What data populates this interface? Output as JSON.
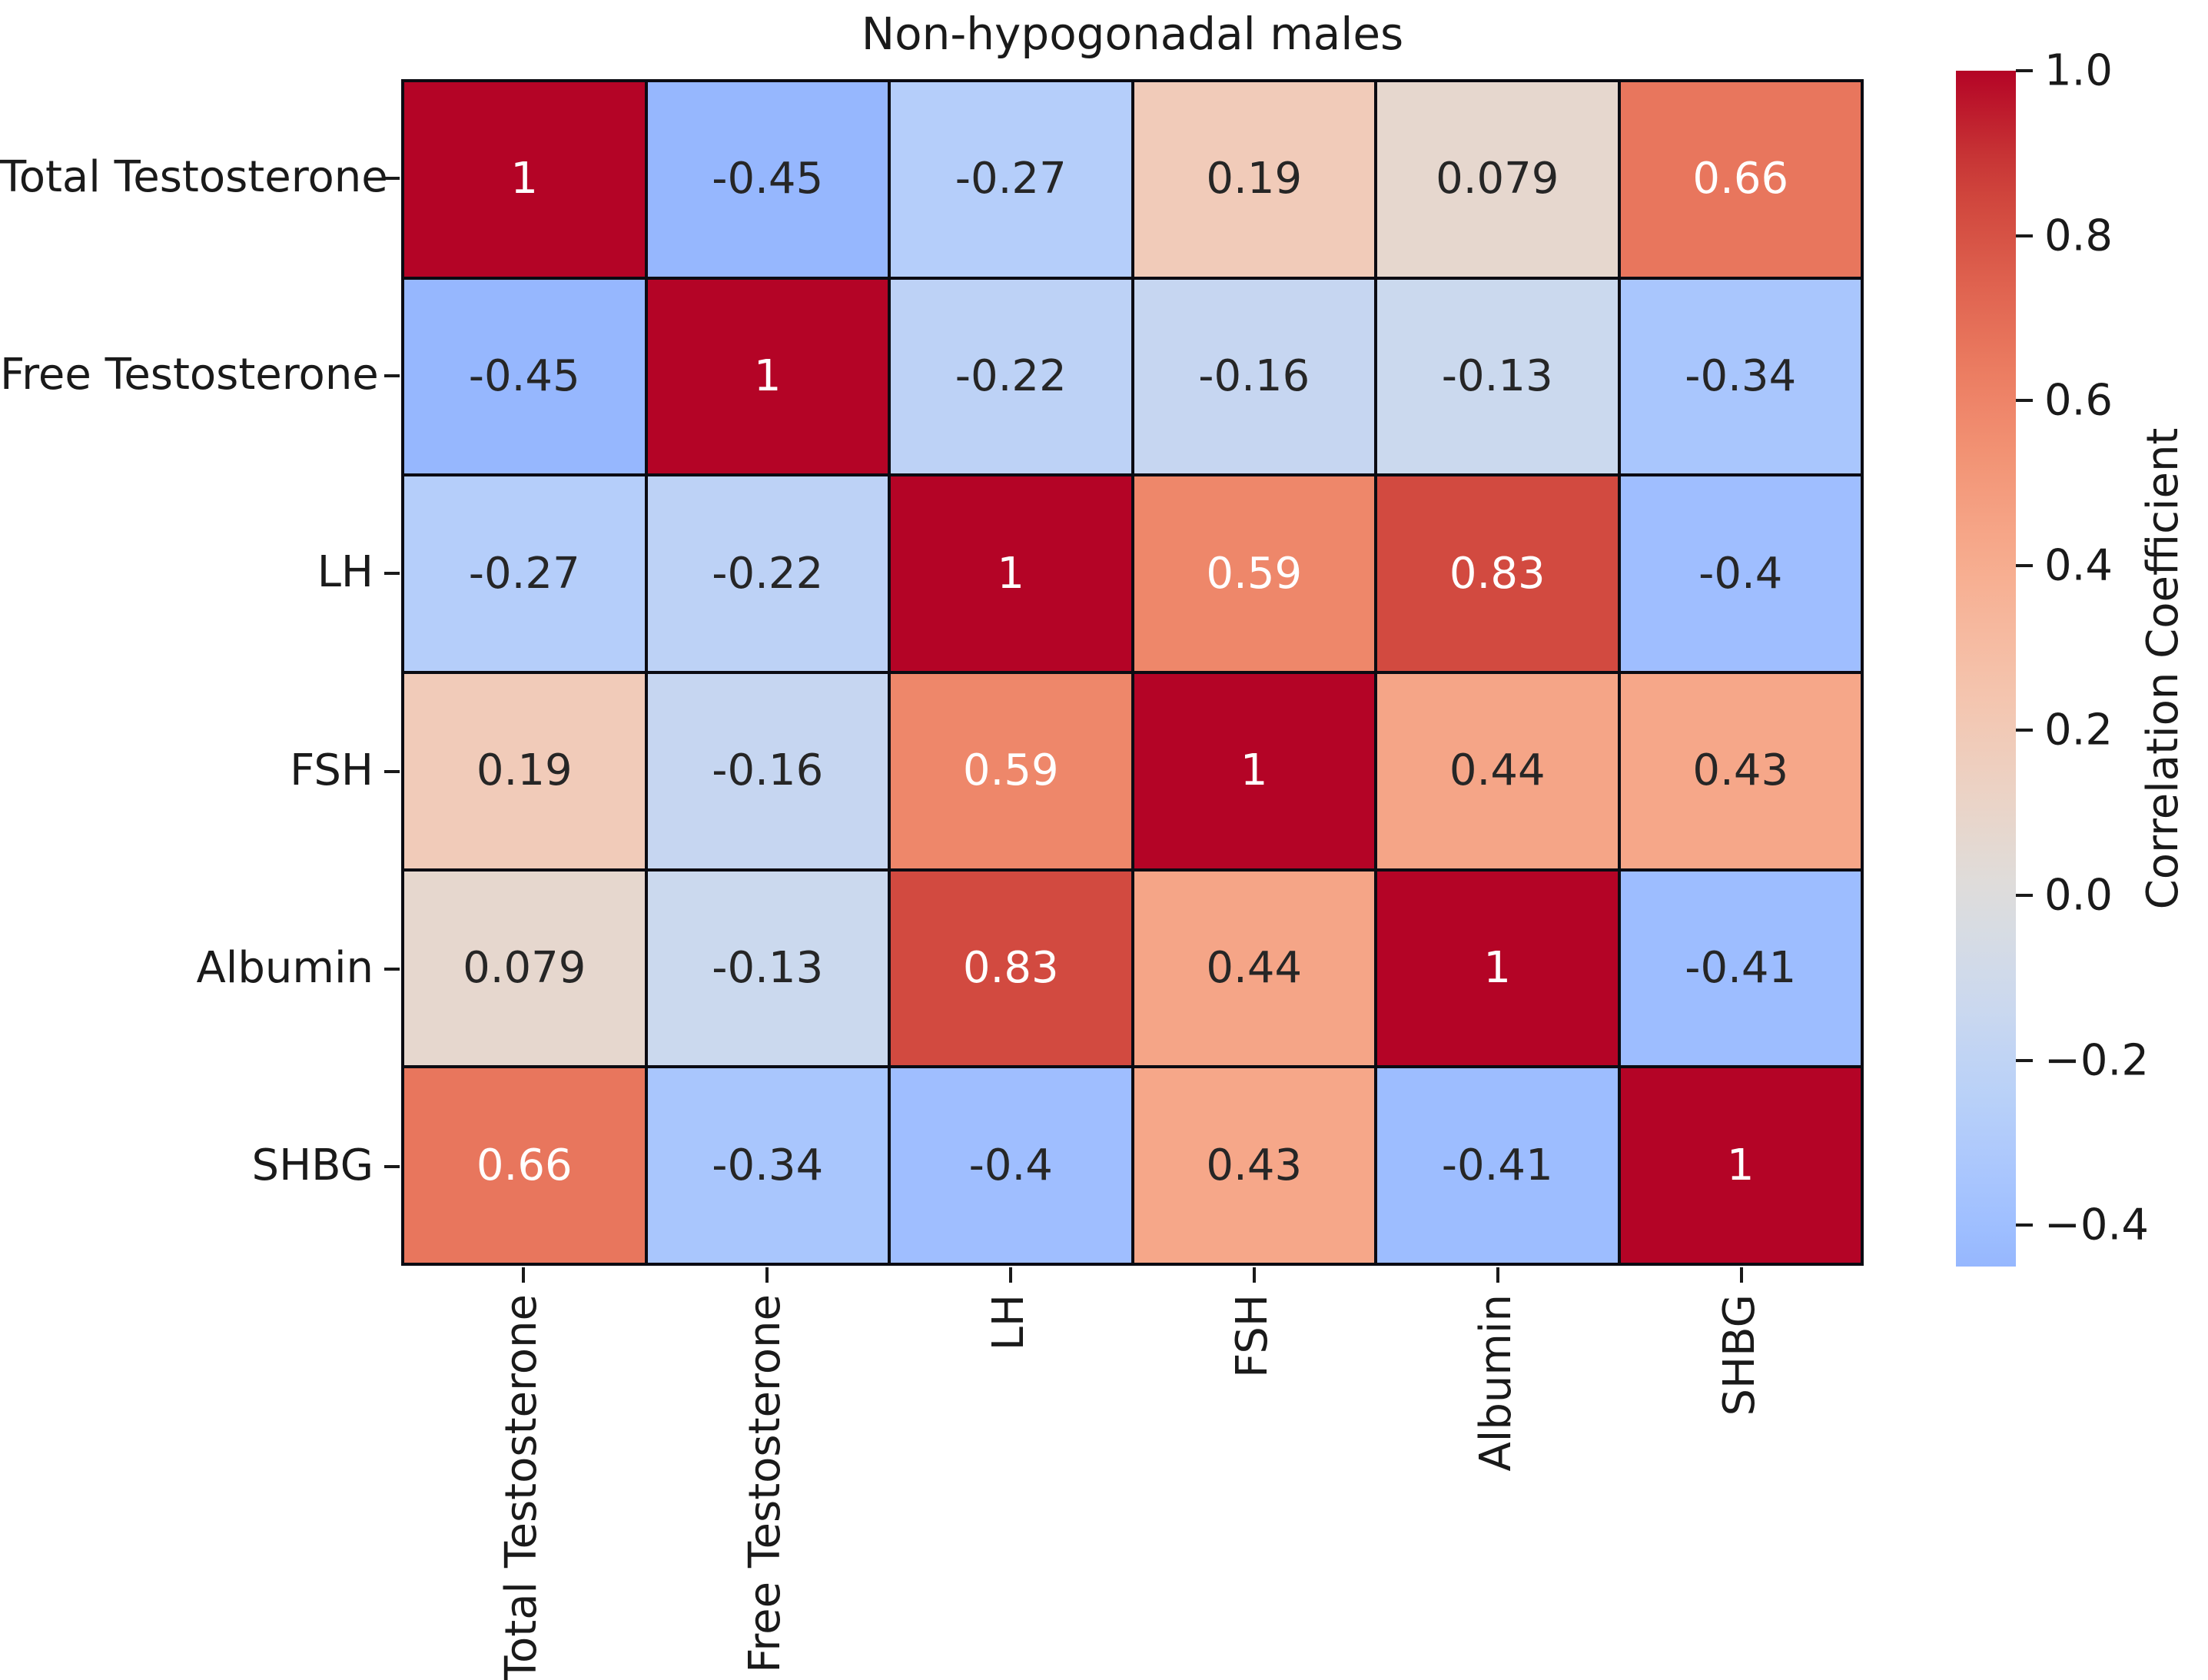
{
  "title": "Non-hypogonadal males",
  "chart_data": {
    "type": "heatmap",
    "title": "Non-hypogonadal males",
    "categories": [
      "Total Testosterone",
      "Free Testosterone",
      "LH",
      "FSH",
      "Albumin",
      "SHBG"
    ],
    "matrix": [
      [
        1,
        -0.45,
        -0.27,
        0.19,
        0.079,
        0.66
      ],
      [
        -0.45,
        1,
        -0.22,
        -0.16,
        -0.13,
        -0.34
      ],
      [
        -0.27,
        -0.22,
        1,
        0.59,
        0.83,
        -0.4
      ],
      [
        0.19,
        -0.16,
        0.59,
        1,
        0.44,
        0.43
      ],
      [
        0.079,
        -0.13,
        0.83,
        0.44,
        1,
        -0.41
      ],
      [
        0.66,
        -0.34,
        -0.4,
        0.43,
        -0.41,
        1
      ]
    ],
    "cell_labels": [
      [
        "1",
        "-0.45",
        "-0.27",
        "0.19",
        "0.079",
        "0.66"
      ],
      [
        "-0.45",
        "1",
        "-0.22",
        "-0.16",
        "-0.13",
        "-0.34"
      ],
      [
        "-0.27",
        "-0.22",
        "1",
        "0.59",
        "0.83",
        "-0.4"
      ],
      [
        "0.19",
        "-0.16",
        "0.59",
        "1",
        "0.44",
        "0.43"
      ],
      [
        "0.079",
        "-0.13",
        "0.83",
        "0.44",
        "1",
        "-0.41"
      ],
      [
        "0.66",
        "-0.34",
        "-0.4",
        "0.43",
        "-0.41",
        "1"
      ]
    ],
    "colorbar": {
      "label": "Correlation Coefficient",
      "vmin": -0.45,
      "vmax": 1.0,
      "ticks": [
        1.0,
        0.8,
        0.6,
        0.4,
        0.2,
        0.0,
        -0.2,
        -0.4
      ],
      "tick_labels": [
        "1.0",
        "0.8",
        "0.6",
        "0.4",
        "0.2",
        "0.0",
        "−0.2",
        "−0.4"
      ]
    },
    "colormap": {
      "name": "coolwarm",
      "anchors": [
        [
          0.0,
          59,
          76,
          192
        ],
        [
          0.0625,
          77,
          104,
          215
        ],
        [
          0.125,
          98,
          130,
          234
        ],
        [
          0.1875,
          119,
          154,
          247
        ],
        [
          0.25,
          141,
          176,
          254
        ],
        [
          0.3125,
          163,
          194,
          255
        ],
        [
          0.375,
          184,
          208,
          249
        ],
        [
          0.4375,
          204,
          217,
          238
        ],
        [
          0.5,
          221,
          221,
          221
        ],
        [
          0.5625,
          236,
          211,
          197
        ],
        [
          0.625,
          245,
          196,
          173
        ],
        [
          0.6875,
          247,
          177,
          148
        ],
        [
          0.75,
          244,
          154,
          123
        ],
        [
          0.8125,
          236,
          127,
          99
        ],
        [
          0.875,
          222,
          96,
          77
        ],
        [
          0.9375,
          203,
          62,
          56
        ],
        [
          1.0,
          180,
          4,
          38
        ]
      ]
    },
    "annotation_colors": {
      "light": "#ffffff",
      "dark": "#262626"
    },
    "grid_line_color": "#0b0b12",
    "legend_position": "right",
    "grid": "off"
  }
}
